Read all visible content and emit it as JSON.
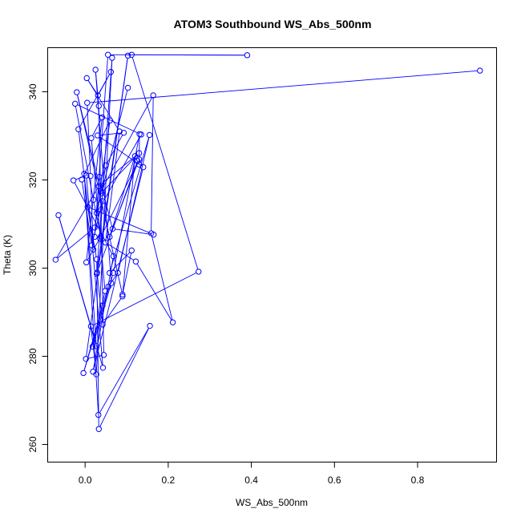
{
  "chart_data": {
    "type": "line",
    "title": "ATOM3 Southbound WS_Abs_500nm",
    "xlabel": "WS_Abs_500nm",
    "ylabel": "Theta (K)",
    "xlim": [
      -0.09,
      0.99
    ],
    "ylim": [
      256,
      350
    ],
    "xticks": [
      0,
      0.2,
      0.4,
      0.6,
      0.8
    ],
    "xtick_labels": [
      "0.0",
      "0.2",
      "0.4",
      "0.6",
      "0.8"
    ],
    "yticks": [
      260,
      280,
      300,
      320,
      340
    ],
    "ytick_labels": [
      "260",
      "280",
      "300",
      "320",
      "340"
    ],
    "grid": false,
    "color": "#0000ff",
    "markers": "open-circle",
    "series": [
      {
        "x": [
          0.95,
          0.005,
          0.013,
          0.02,
          -0.016,
          0.062,
          0.031,
          0.004,
          0.083,
          0.049,
          0.122,
          0.211,
          0.159,
          0.164,
          0.038,
          -0.02,
          0.09,
          0.112,
          0.059,
          0.155,
          0.079,
          0.056,
          0.042,
          -0.004,
          0.068,
          0.131,
          0.13,
          0.126,
          0.029,
          0.042,
          0.09,
          0.12,
          0.059,
          0.13,
          0.036,
          0.042,
          0.016,
          -0.008,
          0.06,
          0.028,
          0.135,
          -0.024,
          0.02,
          0.038,
          0.003,
          0.041,
          0.015,
          0.048,
          0.018,
          0.063,
          0.025,
          0.033,
          0.045,
          0.002,
          0.103,
          0.028,
          0.065,
          0.027,
          0.014,
          0.273,
          0.112,
          0.39,
          0.055,
          0.023,
          0.034,
          0.066,
          0.165,
          0.006,
          0.028,
          0.033,
          0.156,
          0.032,
          -0.002,
          0.027,
          -0.064,
          0.043,
          0.003,
          -0.028,
          0.068,
          0.019,
          0.14,
          0.03,
          0.093,
          0.05,
          0.023,
          -0.071,
          0.033,
          0.13,
          0.039,
          0.103
        ],
        "y": [
          344.8,
          337.5,
          320.9,
          304.2,
          331.5,
          344.5,
          339.2,
          343.1,
          331.0,
          305.8,
          301.5,
          287.7,
          307.9,
          339.2,
          317.5,
          339.9,
          294.0,
          304.0,
          298.9,
          330.2,
          298.9,
          295.8,
          291.5,
          276.2,
          298.9,
          330.4,
          323.5,
          324.3,
          299.0,
          287.2,
          293.6,
          325.4,
          307.1,
          324.7,
          306.7,
          315.2,
          305.2,
          320.1,
          333.5,
          312.5,
          330.3,
          337.3,
          315.5,
          307.2,
          301.3,
          334.2,
          329.5,
          294.8,
          282.2,
          296.6,
          345.0,
          336.8,
          280.3,
          279.4,
          348.2,
          298.7,
          347.7,
          275.9,
          286.8,
          299.2,
          348.4,
          348.3,
          348.4,
          307.1,
          320.7,
          308.9,
          307.6,
          313.9,
          302.0,
          263.5,
          286.9,
          266.7,
          321.4,
          282.3,
          312.0,
          277.4,
          321.0,
          319.9,
          302.7,
          276.5,
          322.9,
          330.1,
          330.7,
          323.3,
          309.2,
          301.9,
          318.6,
          326.1,
          317.0,
          340.9
        ]
      }
    ]
  }
}
